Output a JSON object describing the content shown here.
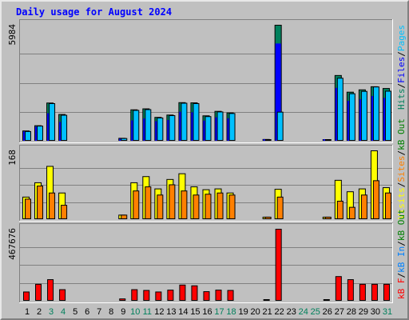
{
  "chart_data": {
    "type": "bar",
    "title": "Daily usage for August 2024",
    "colors": {
      "hits": "#00805c",
      "files": "#0000ff",
      "pages": "#00c0ff",
      "visits": "#ffff00",
      "sites": "#ff8000",
      "kbin": "#0080ff",
      "kbout": "#008000",
      "kbf": "#ff0000",
      "weekday": "#000000",
      "weekend": "#00805c",
      "plot_bg": "#c0c0c0",
      "grid": "#808080"
    },
    "categories": [
      "1",
      "2",
      "3",
      "4",
      "5",
      "6",
      "7",
      "8",
      "9",
      "10",
      "11",
      "12",
      "13",
      "14",
      "15",
      "16",
      "17",
      "18",
      "19",
      "20",
      "21",
      "22",
      "23",
      "24",
      "25",
      "26",
      "27",
      "28",
      "29",
      "30",
      "31"
    ],
    "weekend_days": [
      "3",
      "4",
      "10",
      "11",
      "17",
      "18",
      "24",
      "25",
      "31"
    ],
    "panels": [
      {
        "id": "top",
        "max_label": "5984",
        "ymax": 5984,
        "legend": [
          {
            "text": "Hits",
            "color_key": "hits"
          },
          {
            "text": "/",
            "color_key": "weekday"
          },
          {
            "text": "Files",
            "color_key": "files"
          },
          {
            "text": "/",
            "color_key": "weekday"
          },
          {
            "text": "Pages",
            "color_key": "pages"
          }
        ],
        "series": [
          {
            "key": "hits",
            "values": [
              530,
              800,
              1970,
              1380,
              0,
              0,
              0,
              0,
              150,
              1620,
              1670,
              1230,
              1350,
              1990,
              1980,
              1310,
              1540,
              1460,
              0,
              0,
              90,
              5984,
              0,
              0,
              0,
              80,
              3390,
              2530,
              2650,
              2810,
              2720
            ]
          },
          {
            "key": "files",
            "values": [
              480,
              730,
              1420,
              970,
              0,
              0,
              0,
              0,
              110,
              1050,
              1150,
              1010,
              1070,
              1500,
              1470,
              1040,
              1210,
              1160,
              0,
              0,
              70,
              5020,
              0,
              0,
              0,
              60,
              2730,
              2060,
              2140,
              2310,
              2210
            ]
          },
          {
            "key": "pages",
            "values": [
              500,
              780,
              1940,
              1340,
              0,
              0,
              0,
              0,
              140,
              1590,
              1630,
              1200,
              1320,
              1960,
              1940,
              1270,
              1510,
              1430,
              0,
              0,
              80,
              1500,
              0,
              0,
              0,
              70,
              3250,
              2450,
              2570,
              2800,
              2580
            ]
          }
        ]
      },
      {
        "id": "middle",
        "max_label": "168",
        "ymax": 168,
        "legend": [
          {
            "text": "Visits",
            "color_key": "visits"
          },
          {
            "text": "/",
            "color_key": "weekday"
          },
          {
            "text": "Sites",
            "color_key": "sites"
          },
          {
            "text": "/",
            "color_key": "weekday"
          },
          {
            "text": "kB Out",
            "color_key": "kbout"
          }
        ],
        "series": [
          {
            "key": "visits",
            "values": [
              55,
              90,
              130,
              65,
              0,
              0,
              0,
              0,
              11,
              90,
              105,
              75,
              98,
              112,
              80,
              73,
              75,
              65,
              0,
              0,
              6,
              74,
              0,
              0,
              0,
              6,
              96,
              68,
              75,
              168,
              78
            ]
          },
          {
            "key": "sites",
            "values": [
              50,
              82,
              65,
              35,
              0,
              0,
              0,
              0,
              11,
              70,
              80,
              60,
              85,
              70,
              60,
              62,
              65,
              60,
              0,
              0,
              6,
              55,
              0,
              0,
              0,
              6,
              45,
              30,
              60,
              95,
              65
            ]
          }
        ]
      },
      {
        "id": "bottom",
        "max_label": "467676",
        "ymax": 467676,
        "legend": [
          {
            "text": "kB F",
            "color_key": "kbf"
          },
          {
            "text": "/",
            "color_key": "weekday"
          },
          {
            "text": "kB In",
            "color_key": "kbin"
          },
          {
            "text": "/",
            "color_key": "weekday"
          },
          {
            "text": "kB Out",
            "color_key": "kbout"
          }
        ],
        "series": [
          {
            "key": "kbf",
            "values": [
              60000,
              110000,
              140000,
              75000,
              0,
              0,
              0,
              0,
              15000,
              75000,
              70000,
              60000,
              72000,
              105000,
              100000,
              62000,
              72000,
              70000,
              0,
              0,
              10000,
              467676,
              0,
              0,
              0,
              10000,
              160000,
              140000,
              110000,
              110000,
              110000
            ]
          }
        ]
      }
    ]
  }
}
